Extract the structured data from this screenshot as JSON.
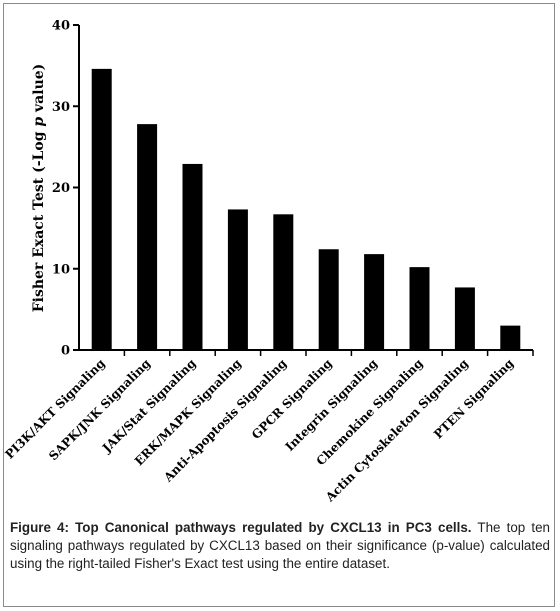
{
  "chart_data": {
    "type": "bar",
    "categories": [
      "PI3K/AKT Signaling",
      "SAPK/JNK Signaling",
      "JAK/Stat Signaling",
      "ERK/MAPK Signaling",
      "Anti-Apoptosis Signaling",
      "GPCR Signaling",
      "Integrin Signaling",
      "Chemokine Signaling",
      "Actin Cytoskeleton Signaling",
      "PTEN Signaling"
    ],
    "values": [
      34.6,
      27.8,
      22.9,
      17.3,
      16.7,
      12.4,
      11.8,
      10.2,
      7.7,
      3.0
    ],
    "ylabel_parts": [
      "Fisher Exact Test (-Log ",
      "p",
      " value)"
    ],
    "ylim": [
      0,
      40
    ],
    "yticks": [
      "0",
      "10",
      "20",
      "30",
      "40"
    ],
    "bar_color": "#000000",
    "grid": false
  },
  "caption": {
    "label": "Figure 4: Top Canonical pathways regulated by CXCL13 in PC3 cells.",
    "text": " The top ten signaling pathways regulated by CXCL13 based on their significance (p-value) calculated using the right-tailed Fisher's Exact test using the entire dataset."
  },
  "colors": {
    "bars": "#000000",
    "frame": "#8a8a8a",
    "caption_text": "#222222"
  }
}
